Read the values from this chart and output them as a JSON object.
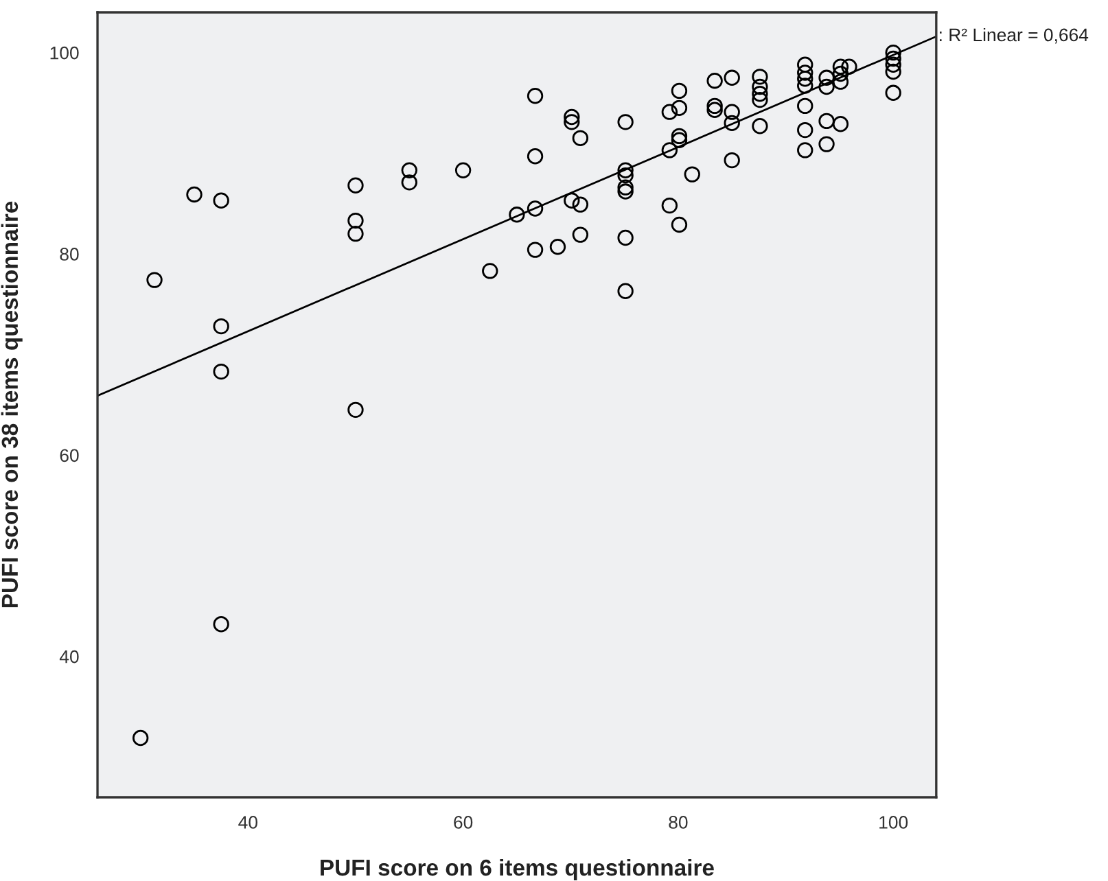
{
  "chart_data": {
    "type": "scatter",
    "xlabel": "PUFI score on 6 items questionnaire",
    "ylabel": "PUFI score on 38 items questionnaire",
    "annotations": [
      {
        "text": ": R² Linear = 0,664",
        "x": 104,
        "y": 101.6
      }
    ],
    "xlim": [
      26,
      104
    ],
    "ylim": [
      26,
      104
    ],
    "xticks": [
      40,
      60,
      80,
      100
    ],
    "yticks": [
      40,
      60,
      80,
      100
    ],
    "grid": false,
    "series": [
      {
        "marker": "circle",
        "color": "#000000",
        "x": [
          31.3,
          35.0,
          37.5,
          37.5,
          37.5,
          50.0,
          50.0,
          50.0,
          50.0,
          55.0,
          55.0,
          60.0,
          62.5,
          65.0,
          66.7,
          66.7,
          66.7,
          66.7,
          68.8,
          70.1,
          70.1,
          70.1,
          70.9,
          70.9,
          70.9,
          75.1,
          75.1,
          75.1,
          75.1,
          75.1,
          75.1,
          75.1,
          79.2,
          79.2,
          79.2,
          80.1,
          80.1,
          80.1,
          80.1,
          80.1,
          81.3,
          83.4,
          83.4,
          83.4,
          85.0,
          85.0,
          85.0,
          85.0,
          87.6,
          87.6,
          87.6,
          87.6,
          87.6,
          91.8,
          91.8,
          91.8,
          91.8,
          91.8,
          91.8,
          91.8,
          93.8,
          93.8,
          93.8,
          93.8,
          95.1,
          95.1,
          95.1,
          95.1,
          95.9,
          100,
          100,
          100,
          100,
          100,
          37.5,
          30.0
        ],
        "values": [
          77.4,
          85.9,
          85.3,
          72.8,
          68.3,
          86.8,
          83.3,
          82.0,
          64.5,
          88.3,
          87.1,
          88.3,
          78.3,
          83.9,
          95.7,
          89.7,
          84.5,
          80.4,
          80.7,
          93.6,
          93.1,
          85.3,
          91.5,
          84.9,
          81.9,
          93.1,
          88.3,
          87.8,
          86.6,
          86.2,
          81.6,
          76.3,
          94.1,
          90.3,
          84.8,
          96.2,
          94.5,
          91.7,
          91.3,
          82.9,
          87.9,
          97.2,
          94.7,
          94.3,
          97.5,
          94.1,
          93.0,
          89.3,
          97.6,
          96.6,
          95.9,
          95.3,
          92.7,
          98.8,
          98.0,
          97.4,
          96.7,
          94.7,
          92.3,
          90.3,
          97.5,
          96.6,
          93.2,
          90.9,
          98.6,
          97.9,
          97.1,
          92.9,
          98.6,
          100.0,
          99.4,
          98.8,
          98.1,
          96.0,
          43.2,
          31.9
        ]
      },
      {
        "type": "line",
        "color": "#000000",
        "x": [
          26,
          104
        ],
        "values": [
          65.9,
          101.6
        ]
      }
    ]
  }
}
